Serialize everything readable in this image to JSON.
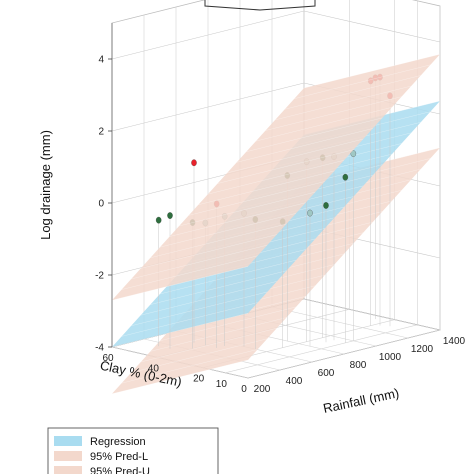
{
  "chart_data": {
    "type": "scatter",
    "subtype": "3d-surface-with-points",
    "xlabel": "Clay % (0-2m)",
    "ylabel": "Rainfall (mm)",
    "zlabel": "Log drainage (mm)",
    "x_ticks": [
      "60",
      "40",
      "20",
      "10",
      "0"
    ],
    "y_ticks": [
      "200",
      "400",
      "600",
      "800",
      "1000",
      "1200",
      "1400"
    ],
    "z_ticks": [
      "4",
      "2",
      "0",
      "-2",
      "-4"
    ],
    "xlim": [
      0,
      60
    ],
    "ylim": [
      200,
      1400
    ],
    "zlim": [
      -4,
      5
    ],
    "grid": true,
    "legend_position": "bottom-left",
    "surfaces": [
      {
        "name": "Regression",
        "color": "#a9dcf0"
      },
      {
        "name": "95% Pred-L",
        "color": "#f3d8cc"
      },
      {
        "name": "95% Pred-U",
        "color": "#f3d8cc"
      }
    ],
    "point_groups": [
      {
        "color": "#e8212b",
        "points": [
          {
            "clay": 20,
            "rain": 1250,
            "z": 2.8
          },
          {
            "clay": 18,
            "rain": 1280,
            "z": 2.9
          },
          {
            "clay": 15,
            "rain": 1300,
            "z": 2.4
          },
          {
            "clay": 25,
            "rain": 1350,
            "z": 2.7
          },
          {
            "clay": 45,
            "rain": 500,
            "z": 1.0
          },
          {
            "clay": 35,
            "rain": 500,
            "z": 0.0
          }
        ]
      },
      {
        "color": "#2e6e3e",
        "points": [
          {
            "clay": 50,
            "rain": 350,
            "z": -0.5
          },
          {
            "clay": 45,
            "rain": 350,
            "z": -0.3
          },
          {
            "clay": 40,
            "rain": 420,
            "z": -0.5
          },
          {
            "clay": 25,
            "rain": 600,
            "z": -0.4
          },
          {
            "clay": 20,
            "rain": 700,
            "z": -0.5
          },
          {
            "clay": 15,
            "rain": 900,
            "z": -0.2
          },
          {
            "clay": 25,
            "rain": 800,
            "z": 0.6
          },
          {
            "clay": 10,
            "rain": 950,
            "z": 0.6
          },
          {
            "clay": 20,
            "rain": 950,
            "z": 1.0
          }
        ]
      },
      {
        "color": "#9fc7c4",
        "points": [
          {
            "clay": 30,
            "rain": 600,
            "z": -0.3
          },
          {
            "clay": 35,
            "rain": 550,
            "z": -0.4
          },
          {
            "clay": 15,
            "rain": 800,
            "z": -0.3
          },
          {
            "clay": 20,
            "rain": 850,
            "z": 1.0
          },
          {
            "clay": 15,
            "rain": 950,
            "z": 1.1
          },
          {
            "clay": 10,
            "rain": 1000,
            "z": 1.2
          },
          {
            "clay": 40,
            "rain": 500,
            "z": -0.6
          }
        ]
      }
    ]
  }
}
